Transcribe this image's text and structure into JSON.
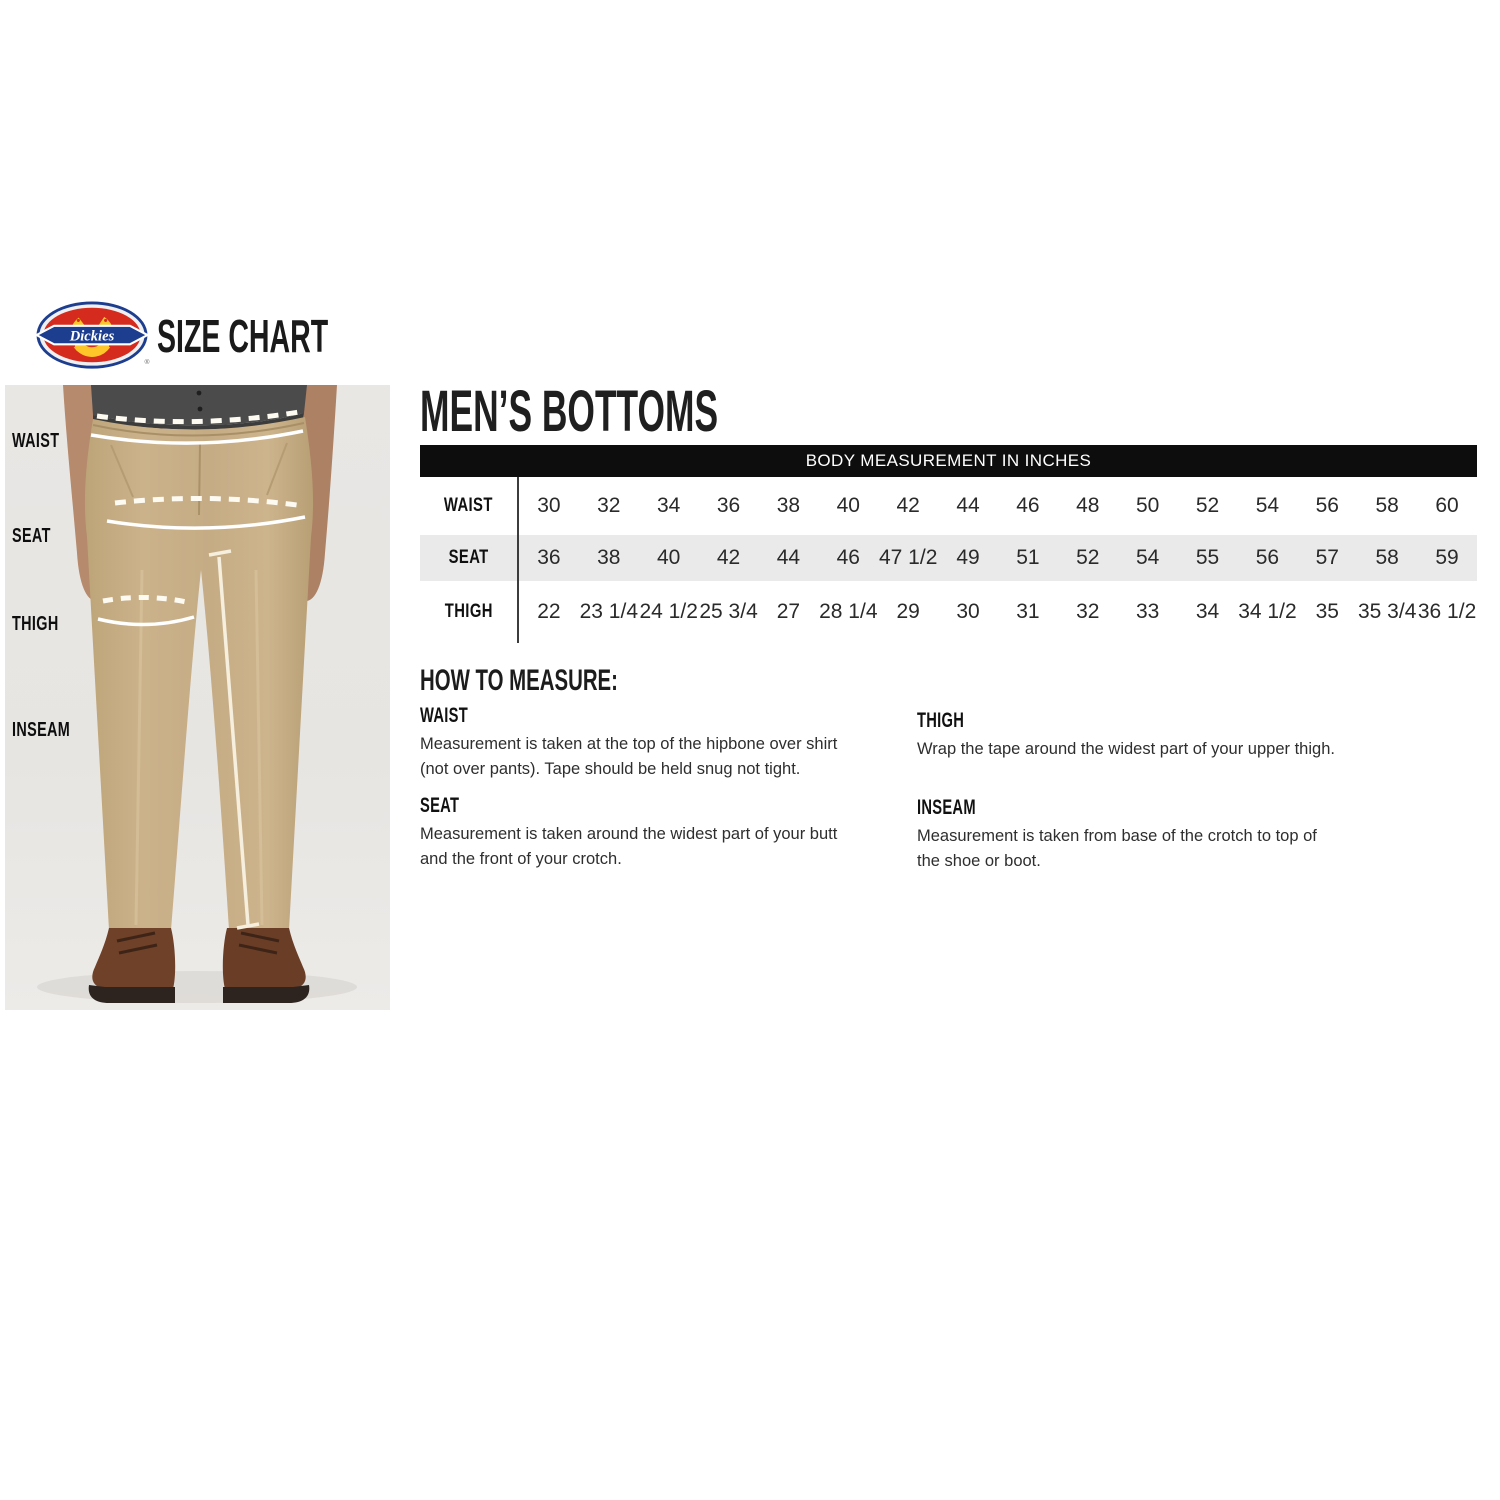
{
  "header": {
    "brand": "Dickies",
    "registered": "®",
    "title": "SIZE CHART"
  },
  "section": {
    "title": "MEN’S BOTTOMS"
  },
  "table": {
    "header": "BODY MEASUREMENT IN INCHES",
    "rows": [
      {
        "label": "WAIST",
        "values": [
          "30",
          "32",
          "34",
          "36",
          "38",
          "40",
          "42",
          "44",
          "46",
          "48",
          "50",
          "52",
          "54",
          "56",
          "58",
          "60"
        ]
      },
      {
        "label": "SEAT",
        "values": [
          "36",
          "38",
          "40",
          "42",
          "44",
          "46",
          "47 1/2",
          "49",
          "51",
          "52",
          "54",
          "55",
          "56",
          "57",
          "58",
          "59"
        ]
      },
      {
        "label": "THIGH",
        "values": [
          "22",
          "23 1/4",
          "24 1/2",
          "25 3/4",
          "27",
          "28 1/4",
          "29",
          "30",
          "31",
          "32",
          "33",
          "34",
          "34 1/2",
          "35",
          "35 3/4",
          "36 1/2"
        ]
      }
    ]
  },
  "figure": {
    "labels": [
      "WAIST",
      "SEAT",
      "THIGH",
      "INSEAM"
    ]
  },
  "how_to_measure": {
    "title": "HOW TO MEASURE:",
    "items": [
      {
        "name": "WAIST",
        "text": "Measurement is taken at the top of the hipbone over shirt\n(not over pants). Tape should be held snug not tight."
      },
      {
        "name": "SEAT",
        "text": "Measurement is taken around the widest part of your butt\nand the front of your crotch."
      },
      {
        "name": "THIGH",
        "text": "Wrap the tape around the widest part of your upper thigh."
      },
      {
        "name": "INSEAM",
        "text": "Measurement is taken from base of the crotch to top of\nthe shoe or boot."
      }
    ]
  },
  "colors": {
    "accent_red": "#d52b1e",
    "accent_yellow": "#ffc629",
    "accent_blue": "#1d3e8f",
    "table_header_bg": "#0d0d0d",
    "row_alt_bg": "#eaeaea",
    "khaki": "#c5ac85"
  }
}
